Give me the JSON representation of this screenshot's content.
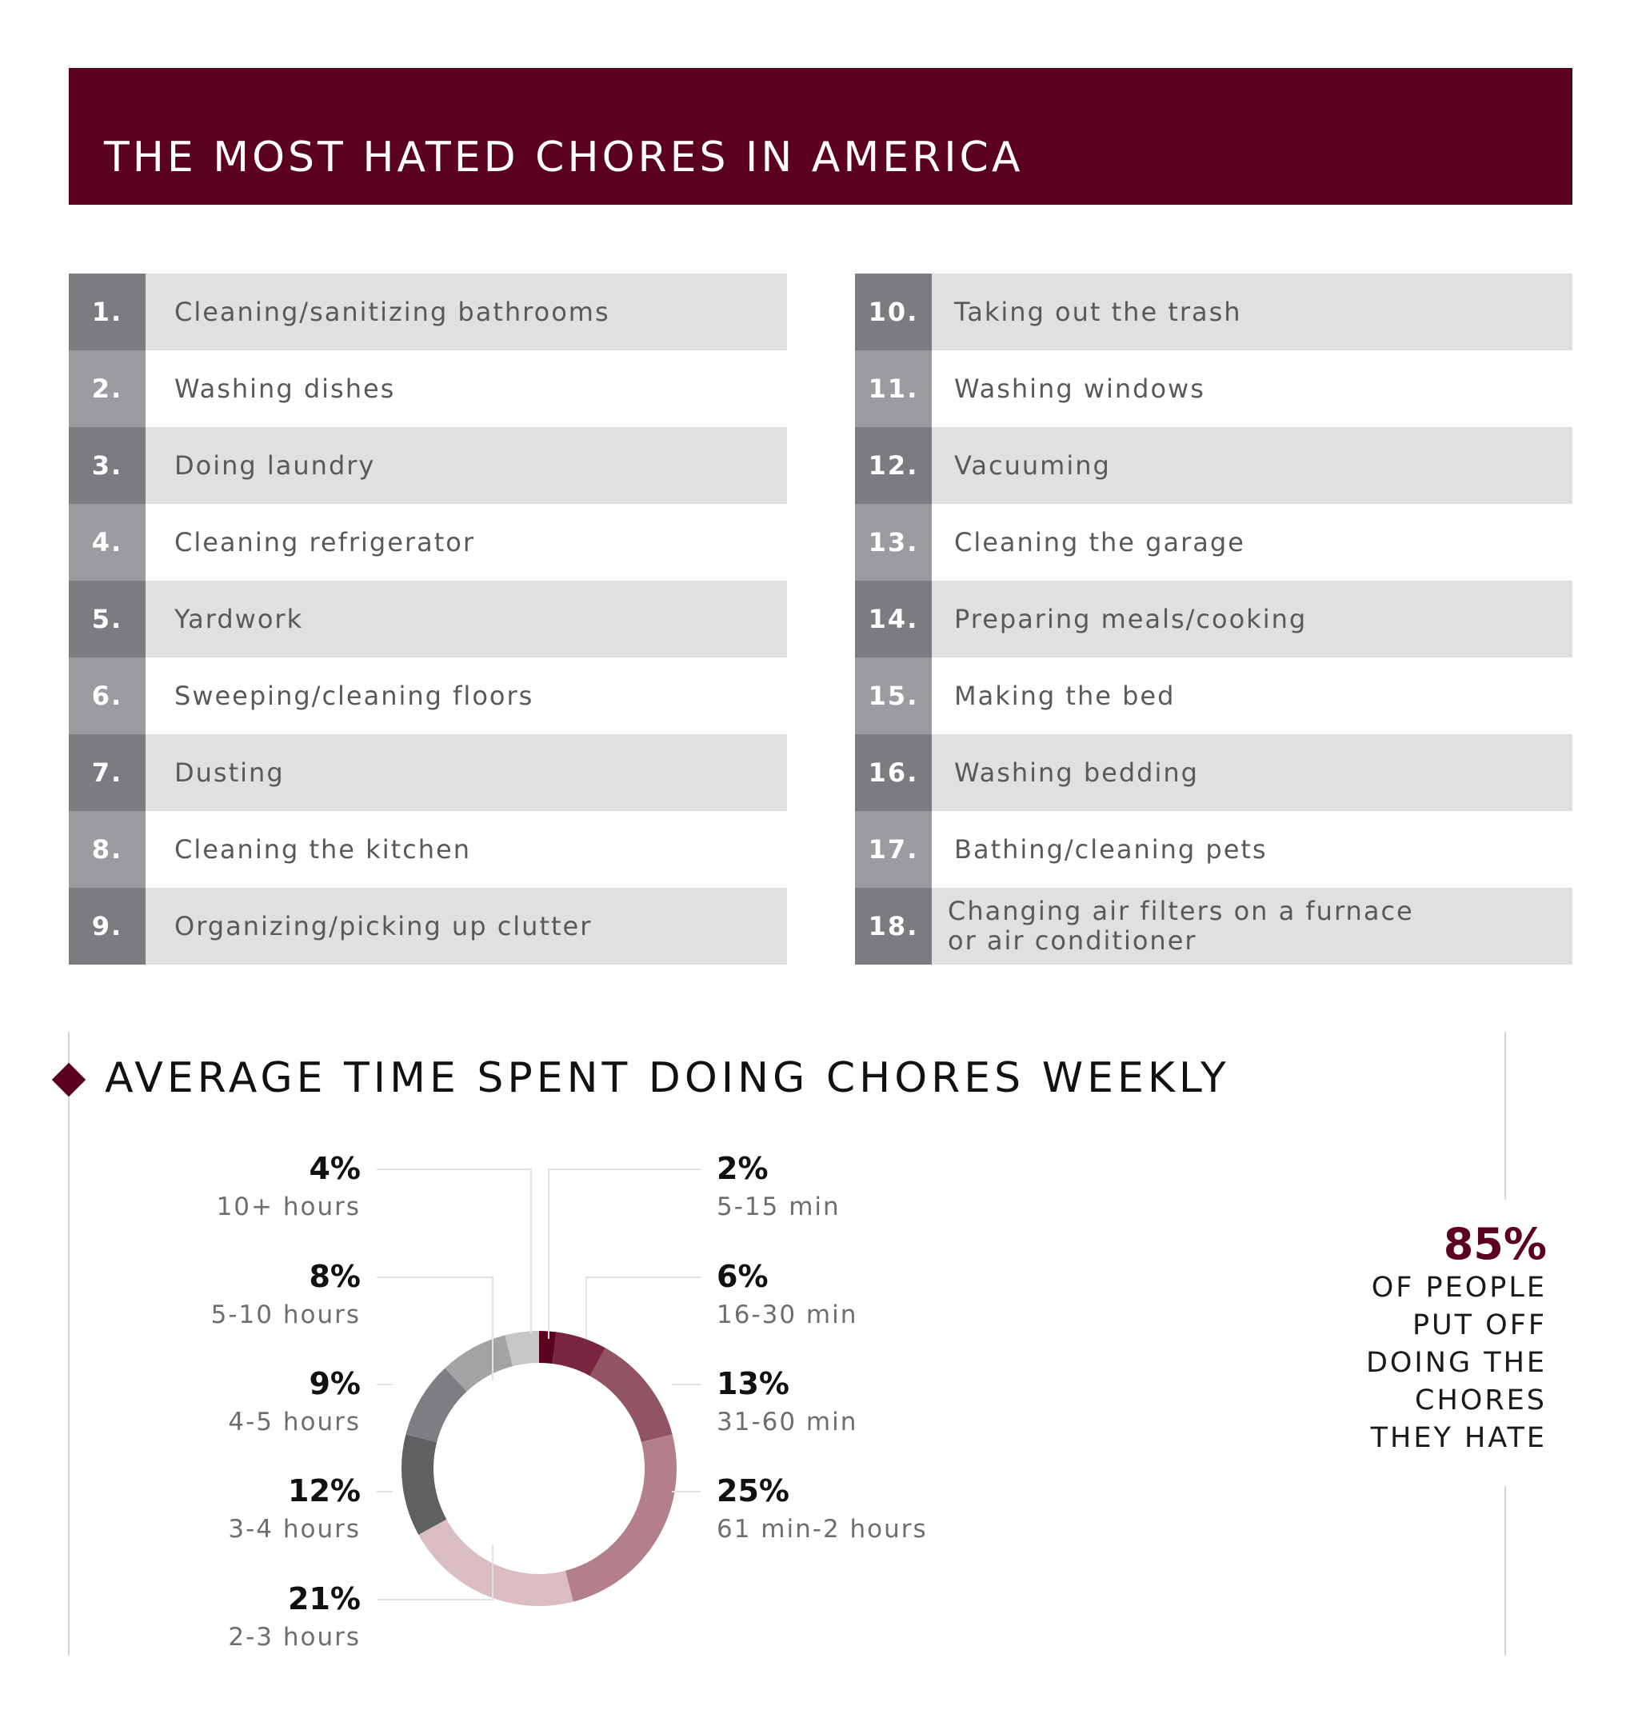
{
  "header": {
    "title": "THE MOST HATED CHORES IN AMERICA"
  },
  "chores_left": [
    {
      "rank": "1.",
      "label": "Cleaning/sanitizing bathrooms"
    },
    {
      "rank": "2.",
      "label": "Washing dishes"
    },
    {
      "rank": "3.",
      "label": "Doing laundry"
    },
    {
      "rank": "4.",
      "label": "Cleaning refrigerator"
    },
    {
      "rank": "5.",
      "label": "Yardwork"
    },
    {
      "rank": "6.",
      "label": "Sweeping/cleaning floors"
    },
    {
      "rank": "7.",
      "label": "Dusting"
    },
    {
      "rank": "8.",
      "label": "Cleaning the kitchen"
    },
    {
      "rank": "9.",
      "label": "Organizing/picking up clutter"
    }
  ],
  "chores_right": [
    {
      "rank": "10.",
      "label": "Taking out the trash"
    },
    {
      "rank": "11.",
      "label": "Washing windows"
    },
    {
      "rank": "12.",
      "label": "Vacuuming"
    },
    {
      "rank": "13.",
      "label": "Cleaning the garage"
    },
    {
      "rank": "14.",
      "label": "Preparing meals/cooking"
    },
    {
      "rank": "15.",
      "label": "Making the bed"
    },
    {
      "rank": "16.",
      "label": "Washing bedding"
    },
    {
      "rank": "17.",
      "label": "Bathing/cleaning pets"
    },
    {
      "rank": "18.",
      "label": "Changing air filters on a furnace\nor air conditioner"
    }
  ],
  "section": {
    "title": "AVERAGE TIME SPENT DOING CHORES WEEKLY"
  },
  "chart_data": {
    "type": "pie",
    "subtype": "donut",
    "title": "AVERAGE TIME SPENT DOING CHORES WEEKLY",
    "categories": [
      "5-15 min",
      "16-30 min",
      "31-60 min",
      "61 min-2 hours",
      "2-3 hours",
      "3-4 hours",
      "4-5 hours",
      "5-10 hours",
      "10+ hours"
    ],
    "values": [
      2,
      6,
      13,
      25,
      21,
      12,
      9,
      8,
      4
    ],
    "value_labels": [
      "2%",
      "6%",
      "13%",
      "25%",
      "21%",
      "12%",
      "9%",
      "8%",
      "4%"
    ],
    "colors": [
      "#5c0020",
      "#7a2540",
      "#925364",
      "#b37f8b",
      "#dbbcc3",
      "#5f6062",
      "#7d7e81",
      "#a3a4a6",
      "#c5c6c8"
    ],
    "label_sides": [
      "right",
      "right",
      "right",
      "right",
      "left",
      "left",
      "left",
      "left",
      "left"
    ]
  },
  "callout": {
    "value": "85%",
    "lines": [
      "OF PEOPLE",
      "PUT OFF",
      "DOING THE",
      "CHORES",
      "THEY HATE"
    ]
  }
}
